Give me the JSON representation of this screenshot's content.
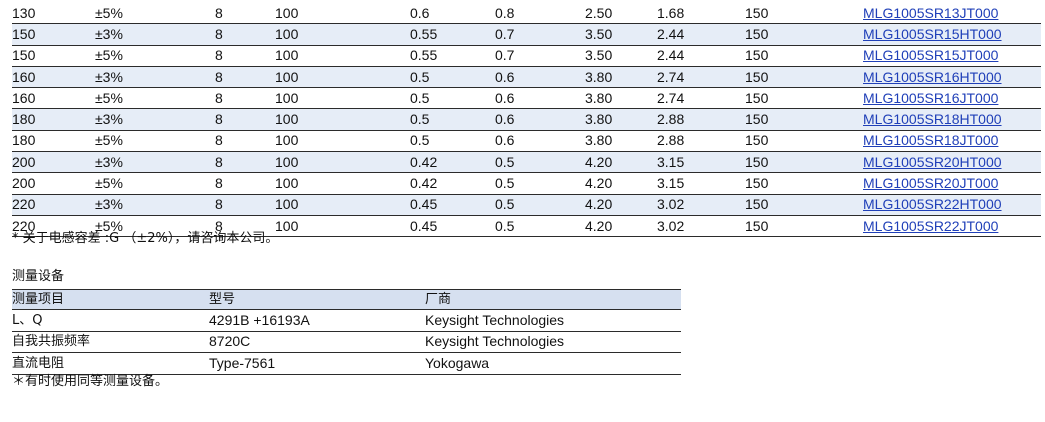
{
  "inductor_rows": [
    [
      "130",
      "±5%",
      "8",
      "100",
      "0.6",
      "0.8",
      "2.50",
      "1.68",
      "150",
      "MLG1005SR13JT000"
    ],
    [
      "150",
      "±3%",
      "8",
      "100",
      "0.55",
      "0.7",
      "3.50",
      "2.44",
      "150",
      "MLG1005SR15HT000"
    ],
    [
      "150",
      "±5%",
      "8",
      "100",
      "0.55",
      "0.7",
      "3.50",
      "2.44",
      "150",
      "MLG1005SR15JT000"
    ],
    [
      "160",
      "±3%",
      "8",
      "100",
      "0.5",
      "0.6",
      "3.80",
      "2.74",
      "150",
      "MLG1005SR16HT000"
    ],
    [
      "160",
      "±5%",
      "8",
      "100",
      "0.5",
      "0.6",
      "3.80",
      "2.74",
      "150",
      "MLG1005SR16JT000"
    ],
    [
      "180",
      "±3%",
      "8",
      "100",
      "0.5",
      "0.6",
      "3.80",
      "2.88",
      "150",
      "MLG1005SR18HT000"
    ],
    [
      "180",
      "±5%",
      "8",
      "100",
      "0.5",
      "0.6",
      "3.80",
      "2.88",
      "150",
      "MLG1005SR18JT000"
    ],
    [
      "200",
      "±3%",
      "8",
      "100",
      "0.42",
      "0.5",
      "4.20",
      "3.15",
      "150",
      "MLG1005SR20HT000"
    ],
    [
      "200",
      "±5%",
      "8",
      "100",
      "0.42",
      "0.5",
      "4.20",
      "3.15",
      "150",
      "MLG1005SR20JT000"
    ],
    [
      "220",
      "±3%",
      "8",
      "100",
      "0.45",
      "0.5",
      "4.20",
      "3.02",
      "150",
      "MLG1005SR22HT000"
    ],
    [
      "220",
      "±5%",
      "8",
      "100",
      "0.45",
      "0.5",
      "4.20",
      "3.02",
      "150",
      "MLG1005SR22JT000"
    ]
  ],
  "tolerance_note": "* 关于电感容差 :G （±2%），请咨询本公司。",
  "equipment": {
    "title": "测量设备",
    "headers": [
      "测量项目",
      "型号",
      "厂商"
    ],
    "rows": [
      [
        "L、Q",
        "4291B +16193A",
        "Keysight Technologies"
      ],
      [
        "自我共振频率",
        "8720C",
        "Keysight Technologies"
      ],
      [
        "直流电阻",
        "Type-7561",
        "Yokogawa"
      ]
    ],
    "note": "＊有时使用同等测量设备。"
  },
  "colors": {
    "row_shade": "#e6edf7",
    "header_shade": "#d6e0f0",
    "link": "#1f3fb8"
  }
}
